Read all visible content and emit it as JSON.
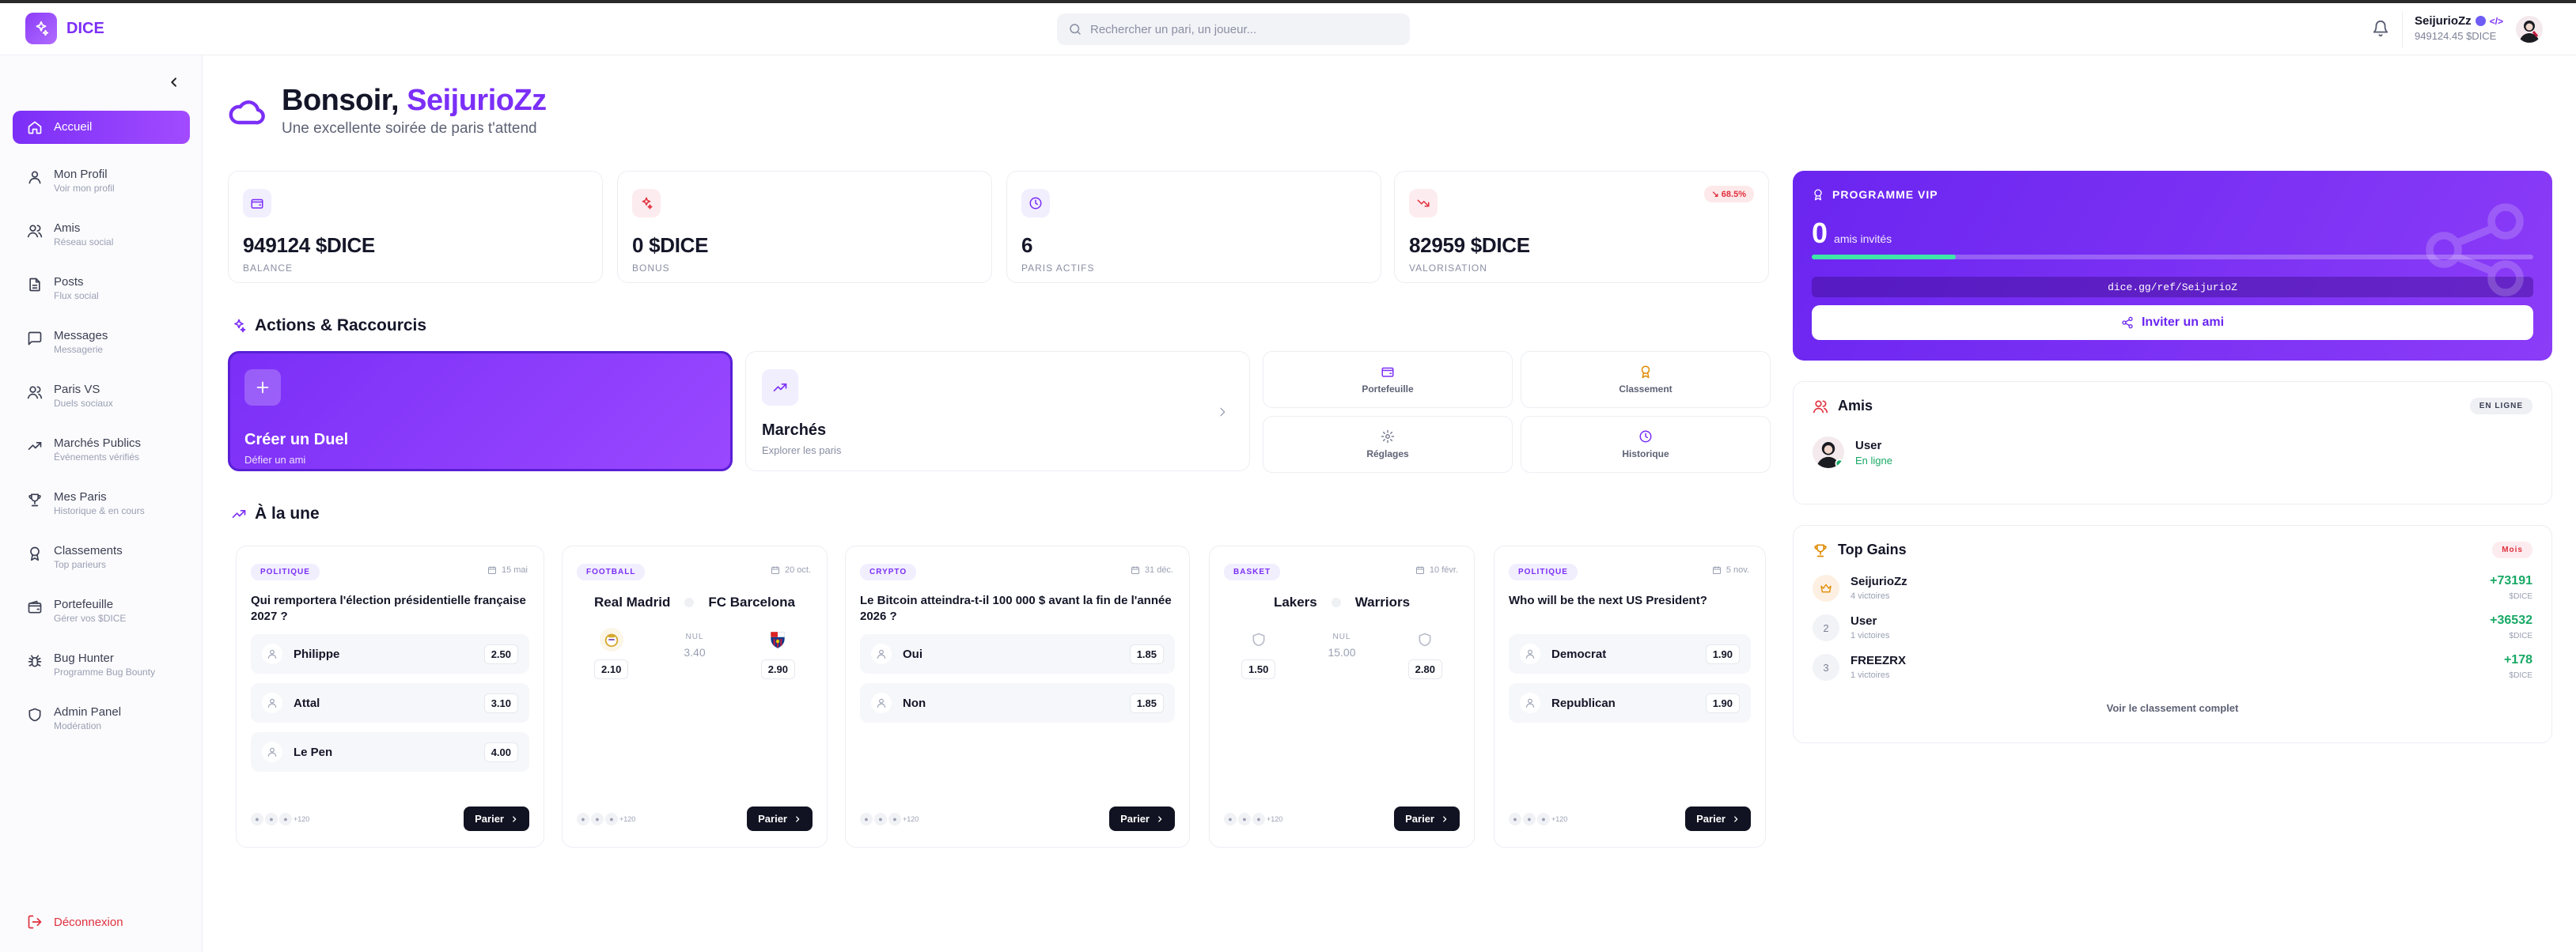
{
  "app": {
    "name": "DICE"
  },
  "header": {
    "search_placeholder": "Rechercher un pari, un joueur...",
    "username": "SeijurioZz",
    "code_icon": "</>",
    "balance": "949124.45 $DICE"
  },
  "sidebar": {
    "items": [
      {
        "label": "Accueil",
        "sub": "",
        "icon": "home-icon"
      },
      {
        "label": "Mon Profil",
        "sub": "Voir mon profil",
        "icon": "user-icon"
      },
      {
        "label": "Amis",
        "sub": "Réseau social",
        "icon": "users-icon"
      },
      {
        "label": "Posts",
        "sub": "Flux social",
        "icon": "file-icon"
      },
      {
        "label": "Messages",
        "sub": "Messagerie",
        "icon": "message-icon"
      },
      {
        "label": "Paris VS",
        "sub": "Duels sociaux",
        "icon": "users-vs-icon"
      },
      {
        "label": "Marchés Publics",
        "sub": "Événements vérifiés",
        "icon": "trend-icon"
      },
      {
        "label": "Mes Paris",
        "sub": "Historique & en cours",
        "icon": "trophy-icon"
      },
      {
        "label": "Classements",
        "sub": "Top parieurs",
        "icon": "medal-icon"
      },
      {
        "label": "Portefeuille",
        "sub": "Gérer vos $DICE",
        "icon": "wallet-icon"
      },
      {
        "label": "Bug Hunter",
        "sub": "Programme Bug Bounty",
        "icon": "bug-icon"
      },
      {
        "label": "Admin Panel",
        "sub": "Modération",
        "icon": "shield-icon"
      }
    ],
    "logout": "Déconnexion"
  },
  "greeting": {
    "prefix": "Bonsoir,",
    "name": "SeijurioZz",
    "subtitle": "Une excellente soirée de paris t'attend"
  },
  "stats": [
    {
      "value": "949124 $DICE",
      "label": "BALANCE",
      "icon": "wallet-icon"
    },
    {
      "value": "0 $DICE",
      "label": "BONUS",
      "icon": "sparkle-icon"
    },
    {
      "value": "6",
      "label": "PARIS ACTIFS",
      "icon": "clock-icon"
    },
    {
      "value": "82959 $DICE",
      "label": "VALORISATION",
      "icon": "trend-down-icon",
      "badge": "↘ 68.5%"
    }
  ],
  "actions": {
    "title": "Actions & Raccourcis",
    "duel": {
      "title": "Créer un Duel",
      "sub": "Défier un ami"
    },
    "markets": {
      "title": "Marchés",
      "sub": "Explorer les paris"
    },
    "quick": [
      "Portefeuille",
      "Classement",
      "Réglages",
      "Historique"
    ]
  },
  "featured": {
    "title": "À la une",
    "cards": [
      {
        "tag": "POLITIQUE",
        "date": "15 mai",
        "question": "Qui remportera l'élection présidentielle française 2027 ?",
        "options": [
          {
            "name": "Philippe",
            "odd": "2.50"
          },
          {
            "name": "Attal",
            "odd": "3.10"
          },
          {
            "name": "Le Pen",
            "odd": "4.00"
          }
        ],
        "participants": "+120",
        "cta": "Parier"
      },
      {
        "tag": "FOOTBALL",
        "date": "20 oct.",
        "team1": "Real Madrid",
        "team2": "FC Barcelona",
        "odd1": "2.10",
        "draw_label": "NUL",
        "draw": "3.40",
        "odd2": "2.90",
        "participants": "+120",
        "cta": "Parier"
      },
      {
        "tag": "CRYPTO",
        "date": "31 déc.",
        "question": "Le Bitcoin atteindra-t-il 100 000 $ avant la fin de l'année 2026 ?",
        "options": [
          {
            "name": "Oui",
            "odd": "1.85"
          },
          {
            "name": "Non",
            "odd": "1.85"
          }
        ],
        "participants": "+120",
        "cta": "Parier"
      },
      {
        "tag": "BASKET",
        "date": "10 févr.",
        "team1": "Lakers",
        "team2": "Warriors",
        "odd1": "1.50",
        "draw_label": "NUL",
        "draw": "15.00",
        "odd2": "2.80",
        "participants": "+120",
        "cta": "Parier"
      },
      {
        "tag": "POLITIQUE",
        "date": "5 nov.",
        "question": "Who will be the next US President?",
        "options": [
          {
            "name": "Democrat",
            "odd": "1.90"
          },
          {
            "name": "Republican",
            "odd": "1.90"
          }
        ],
        "participants": "+120",
        "cta": "Parier"
      }
    ]
  },
  "vip": {
    "title": "PROGRAMME VIP",
    "count": "0",
    "count_label": "amis invités",
    "progress": 0.2,
    "ref_link": "dice.gg/ref/SeijurioZ",
    "invite": "Inviter un ami"
  },
  "friends": {
    "title": "Amis",
    "badge": "EN LIGNE",
    "items": [
      {
        "name": "User",
        "status": "En ligne"
      }
    ]
  },
  "top_gains": {
    "title": "Top Gains",
    "badge": "Mois",
    "rows": [
      {
        "rank": "",
        "name": "SeijurioZz",
        "sub": "4 victoires",
        "value": "+73191",
        "unit": "$DICE"
      },
      {
        "rank": "2",
        "name": "User",
        "sub": "1 victoires",
        "value": "+36532",
        "unit": "$DICE"
      },
      {
        "rank": "3",
        "name": "FREEZRX",
        "sub": "1 victoires",
        "value": "+178",
        "unit": "$DICE"
      }
    ],
    "see_all": "Voir le classement complet"
  },
  "colors": {
    "accent": "#7b2ff7",
    "positive": "#18a965",
    "negative": "#e0303e"
  }
}
